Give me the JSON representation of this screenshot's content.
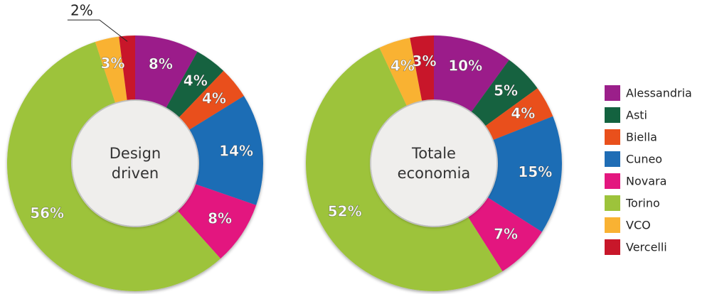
{
  "chart_data": [
    {
      "type": "pie",
      "title": "Design driven",
      "categories": [
        "Alessandria",
        "Asti",
        "Biella",
        "Cuneo",
        "Novara",
        "Torino",
        "VCO",
        "Vercelli"
      ],
      "values": [
        8,
        4,
        4,
        14,
        8,
        56,
        3,
        2
      ],
      "value_labels": [
        "8%",
        "4%",
        "4%",
        "14%",
        "8%",
        "56%",
        "3%",
        "2%"
      ],
      "colors": [
        "#9b1f8a",
        "#13623f",
        "#e9501c",
        "#1f6db5",
        "#e3177f",
        "#9dc33b",
        "#f9b233",
        "#c8172a"
      ]
    },
    {
      "type": "pie",
      "title": "Totale economia",
      "categories": [
        "Alessandria",
        "Asti",
        "Biella",
        "Cuneo",
        "Novara",
        "Torino",
        "VCO",
        "Vercelli"
      ],
      "values": [
        10,
        5,
        4,
        15,
        7,
        52,
        4,
        3
      ],
      "value_labels": [
        "10%",
        "5%",
        "4%",
        "15%",
        "7%",
        "52%",
        "4%",
        "3%"
      ],
      "colors": [
        "#9b1f8a",
        "#13623f",
        "#e9501c",
        "#1f6db5",
        "#e3177f",
        "#9dc33b",
        "#f9b233",
        "#c8172a"
      ]
    }
  ]
}
